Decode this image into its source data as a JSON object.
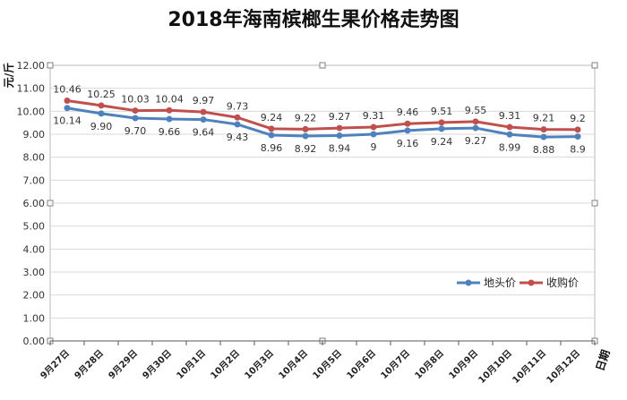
{
  "chart_data": {
    "type": "line",
    "title": "2018年海南槟榔生果价格走势图",
    "xlabel": "日期",
    "ylabel": "元/斤",
    "ylim": [
      0,
      12
    ],
    "yticks": [
      "0.00",
      "1.00",
      "2.00",
      "3.00",
      "4.00",
      "5.00",
      "6.00",
      "7.00",
      "8.00",
      "9.00",
      "10.00",
      "11.00",
      "12.00"
    ],
    "grid": true,
    "legend_position": "bottom-right",
    "categories": [
      "9月27日",
      "9月28日",
      "9月29日",
      "9月30日",
      "10月1日",
      "10月2日",
      "10月3日",
      "10月4日",
      "10月5日",
      "10月6日",
      "10月7日",
      "10月8日",
      "10月9日",
      "10月10日",
      "10月11日",
      "10月12日"
    ],
    "series": [
      {
        "name": "地头价",
        "color": "#4f81bd",
        "values": [
          10.14,
          9.9,
          9.7,
          9.66,
          9.64,
          9.43,
          8.96,
          8.92,
          8.94,
          9,
          9.16,
          9.24,
          9.27,
          8.99,
          8.88,
          8.9
        ],
        "labels": [
          "10.14",
          "9.90",
          "9.70",
          "9.66",
          "9.64",
          "9.43",
          "8.96",
          "8.92",
          "8.94",
          "9",
          "9.16",
          "9.24",
          "9.27",
          "8.99",
          "8.88",
          "8.9"
        ]
      },
      {
        "name": "收购价",
        "color": "#c0504d",
        "values": [
          10.46,
          10.25,
          10.03,
          10.04,
          9.97,
          9.73,
          9.24,
          9.22,
          9.27,
          9.31,
          9.46,
          9.51,
          9.55,
          9.31,
          9.21,
          9.2
        ],
        "labels": [
          "10.46",
          "10.25",
          "10.03",
          "10.04",
          "9.97",
          "9.73",
          "9.24",
          "9.22",
          "9.27",
          "9.31",
          "9.46",
          "9.51",
          "9.55",
          "9.31",
          "9.21",
          "9.2"
        ]
      }
    ]
  }
}
